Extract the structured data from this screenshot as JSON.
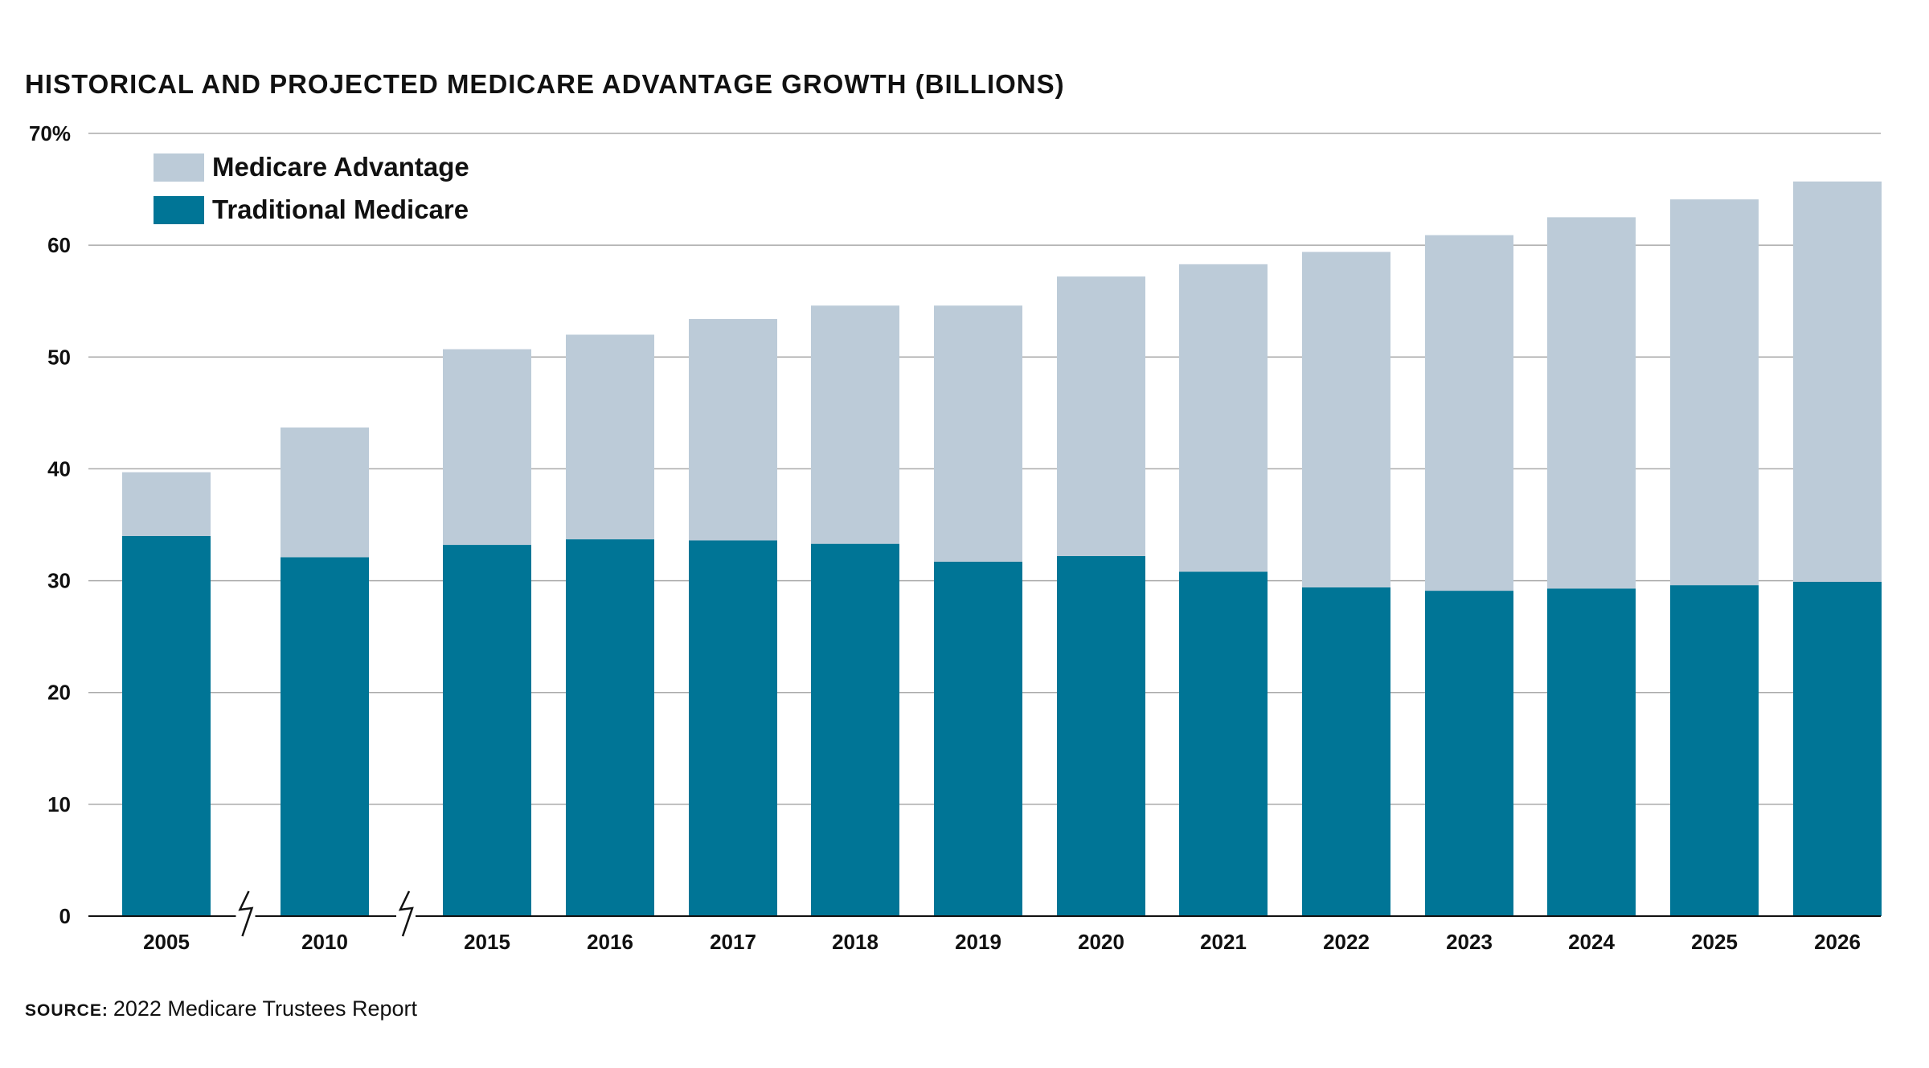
{
  "chart_data": {
    "type": "bar",
    "stacked": true,
    "title": "HISTORICAL AND PROJECTED MEDICARE ADVANTAGE GROWTH (BILLIONS)",
    "categories": [
      "2005",
      "2010",
      "2015",
      "2016",
      "2017",
      "2018",
      "2019",
      "2020",
      "2021",
      "2022",
      "2023",
      "2024",
      "2025",
      "2026"
    ],
    "series": [
      {
        "name": "Traditional Medicare",
        "color": "#007596",
        "values": [
          34.0,
          32.1,
          33.2,
          33.7,
          33.6,
          33.3,
          31.7,
          32.2,
          30.8,
          29.4,
          29.1,
          29.3,
          29.6,
          29.9
        ]
      },
      {
        "name": "Medicare Advantage",
        "color": "#bccbd8",
        "values": [
          5.7,
          11.6,
          17.5,
          18.3,
          19.8,
          21.3,
          22.9,
          25.0,
          27.5,
          30.0,
          31.8,
          33.2,
          34.5,
          35.8
        ]
      }
    ],
    "yticks": [
      "0",
      "10",
      "20",
      "30",
      "40",
      "50",
      "60",
      "70%"
    ],
    "ylim": [
      0,
      70
    ],
    "xlabel": "",
    "ylabel": "",
    "grid": true,
    "axis_breaks_after": [
      "2005",
      "2010"
    ],
    "legend": {
      "position": "top-left",
      "order": [
        "Medicare Advantage",
        "Traditional Medicare"
      ]
    }
  },
  "source": {
    "label": "SOURCE:",
    "text": "2022 Medicare Trustees Report"
  },
  "colors": {
    "gridline": "#aaaaaa",
    "axis": "#111111"
  }
}
